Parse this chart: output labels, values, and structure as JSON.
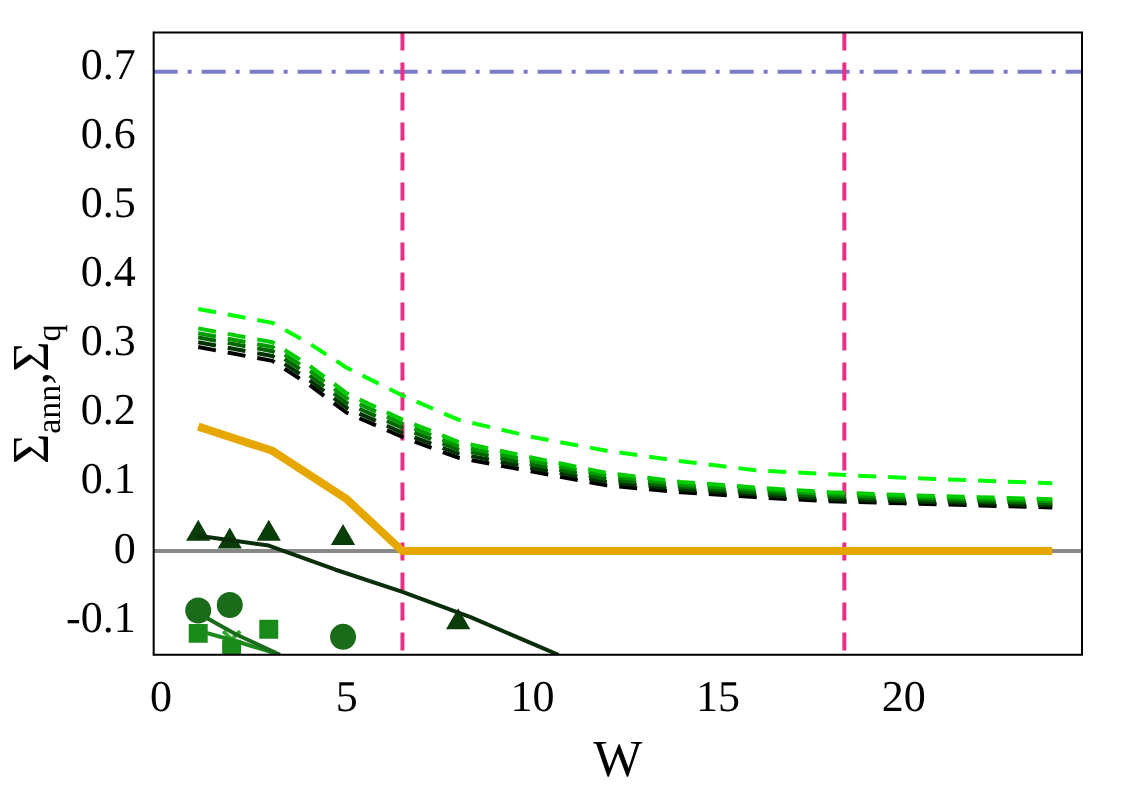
{
  "chart_data": {
    "type": "line",
    "xlabel": "W",
    "ylabel": "Σ$_{ann}$,Σ$_{q}$",
    "xlim": [
      -0.2,
      24.8
    ],
    "ylim": [
      -0.15,
      0.75
    ],
    "xticks": [
      0,
      5,
      10,
      15,
      20
    ],
    "yticks": [
      -0.1,
      0,
      0.1,
      0.2,
      0.3,
      0.4,
      0.5,
      0.6,
      0.7
    ],
    "grid": false,
    "legend": false,
    "ref_lines": [
      {
        "axis": "y",
        "value": 0,
        "color": "#888888",
        "line_style": "solid"
      },
      {
        "axis": "y",
        "value": 0.693,
        "color": "#7b7bcc",
        "line_style": "dashdot"
      },
      {
        "axis": "x",
        "value": 6.5,
        "color": "#e8308a",
        "line_style": "dashed"
      },
      {
        "axis": "x",
        "value": 18.4,
        "color": "#e8308a",
        "line_style": "dashed"
      }
    ],
    "x": [
      1,
      3,
      4,
      5,
      6.5,
      8,
      10,
      12,
      14,
      16,
      18,
      20,
      22,
      24
    ],
    "series": [
      {
        "type": "line",
        "color": "#00ff00",
        "line_style": "dashed",
        "marker": "none",
        "values": [
          0.35,
          0.33,
          0.3,
          0.265,
          0.225,
          0.19,
          0.165,
          0.145,
          0.13,
          0.117,
          0.111,
          0.106,
          0.102,
          0.098
        ]
      },
      {
        "type": "line",
        "color": "#00cc00",
        "line_style": "dashed",
        "marker": "none",
        "values": [
          0.322,
          0.302,
          0.268,
          0.228,
          0.19,
          0.158,
          0.135,
          0.113,
          0.1,
          0.092,
          0.085,
          0.081,
          0.078,
          0.075
        ]
      },
      {
        "type": "line",
        "color": "#009900",
        "line_style": "dashed",
        "marker": "none",
        "values": [
          0.315,
          0.295,
          0.261,
          0.221,
          0.184,
          0.152,
          0.13,
          0.109,
          0.096,
          0.089,
          0.082,
          0.078,
          0.075,
          0.072
        ]
      },
      {
        "type": "line",
        "color": "#006600",
        "line_style": "dashed",
        "marker": "none",
        "values": [
          0.309,
          0.289,
          0.254,
          0.214,
          0.178,
          0.147,
          0.125,
          0.104,
          0.093,
          0.085,
          0.079,
          0.075,
          0.072,
          0.069
        ]
      },
      {
        "type": "line",
        "color": "#003300",
        "line_style": "dashed",
        "marker": "none",
        "values": [
          0.302,
          0.282,
          0.247,
          0.207,
          0.171,
          0.141,
          0.12,
          0.1,
          0.089,
          0.082,
          0.075,
          0.072,
          0.069,
          0.066
        ]
      },
      {
        "type": "line",
        "color": "#000000",
        "line_style": "dashed",
        "marker": "none",
        "values": [
          0.295,
          0.275,
          0.24,
          0.2,
          0.165,
          0.135,
          0.115,
          0.095,
          0.085,
          0.078,
          0.072,
          0.069,
          0.066,
          0.063
        ]
      },
      {
        "type": "line",
        "color": "#e6a800",
        "line_style": "solid",
        "marker": "none",
        "x": [
          1,
          3,
          5,
          6.5,
          24
        ],
        "values": [
          0.18,
          0.145,
          0.075,
          0,
          0
        ]
      },
      {
        "type": "line",
        "color": "#0a2e0a",
        "line_style": "solid",
        "marker": "none",
        "x": [
          1,
          2.9,
          4.7,
          6.5,
          8.35,
          10.7
        ],
        "values": [
          0.022,
          0.008,
          -0.027,
          -0.059,
          -0.096,
          -0.15
        ]
      },
      {
        "type": "line",
        "color": "#1a6b1a",
        "line_style": "solid",
        "marker": "none",
        "x": [
          1,
          2,
          3.2
        ],
        "values": [
          -0.09,
          -0.12,
          -0.15
        ]
      },
      {
        "type": "line",
        "color": "#1a8a1a",
        "line_style": "solid",
        "marker": "none",
        "x": [
          1,
          2,
          3.2
        ],
        "values": [
          -0.115,
          -0.13,
          -0.15
        ]
      },
      {
        "type": "scatter",
        "color": "#0a3d0a",
        "marker": "triangle",
        "x": [
          1,
          1.85,
          2.9,
          4.9,
          8
        ],
        "values": [
          0.025,
          0.014,
          0.025,
          0.019,
          -0.103
        ]
      },
      {
        "type": "scatter",
        "color": "#1a6b1a",
        "marker": "circle",
        "x": [
          1,
          1.85,
          4.9
        ],
        "values": [
          -0.086,
          -0.078,
          -0.124
        ]
      },
      {
        "type": "scatter",
        "color": "#1a8a1a",
        "marker": "square",
        "x": [
          1,
          1.9,
          2.9
        ],
        "values": [
          -0.119,
          -0.142,
          -0.113
        ]
      },
      {
        "type": "scatter",
        "color": "#33aa33",
        "marker": "cross",
        "x": [
          1.9
        ],
        "values": [
          -0.128
        ]
      }
    ]
  }
}
